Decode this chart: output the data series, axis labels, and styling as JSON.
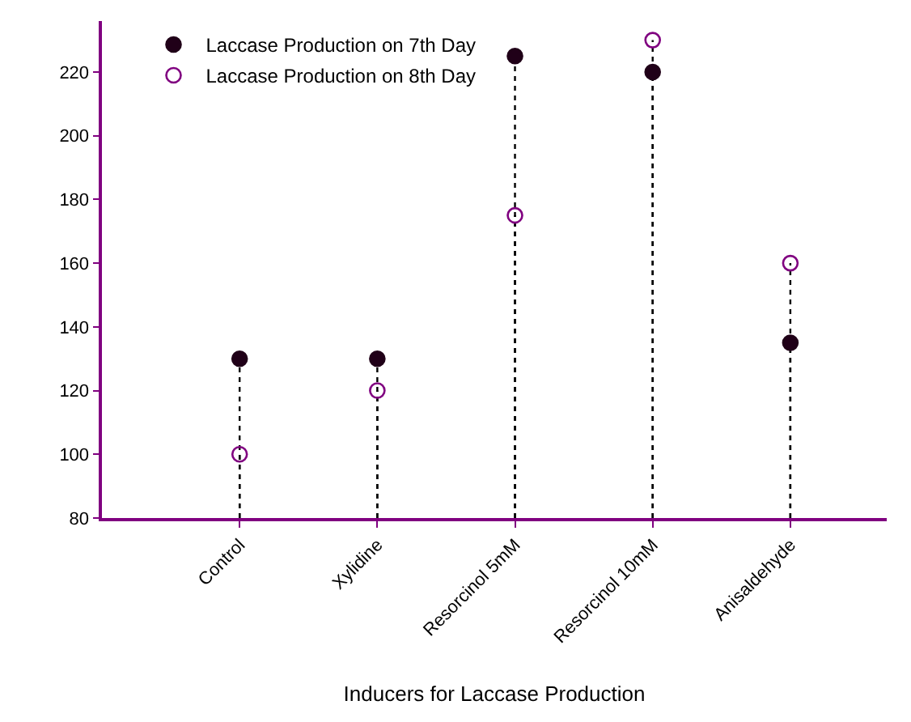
{
  "chart_data": {
    "type": "lollipop",
    "xlabel": "Inducers for Laccase Production",
    "categories": [
      "Control",
      "Xylidine",
      "Resorcinol 5mM",
      "Resorcinol 10mM",
      "Anisaldehyde"
    ],
    "series": [
      {
        "name": "Laccase Production on 7th Day",
        "color": "#200018",
        "marker": "circle",
        "values": [
          130,
          130,
          225,
          220,
          135
        ]
      },
      {
        "name": "Laccase Production on 8th Day",
        "color": "#800080",
        "marker": "circle-open",
        "values": [
          100,
          120,
          175,
          230,
          160
        ]
      }
    ],
    "ylim": [
      80,
      236
    ],
    "yticks": [
      80,
      100,
      120,
      140,
      160,
      180,
      200,
      220
    ],
    "legend": "top left",
    "line_style": "dotted"
  }
}
